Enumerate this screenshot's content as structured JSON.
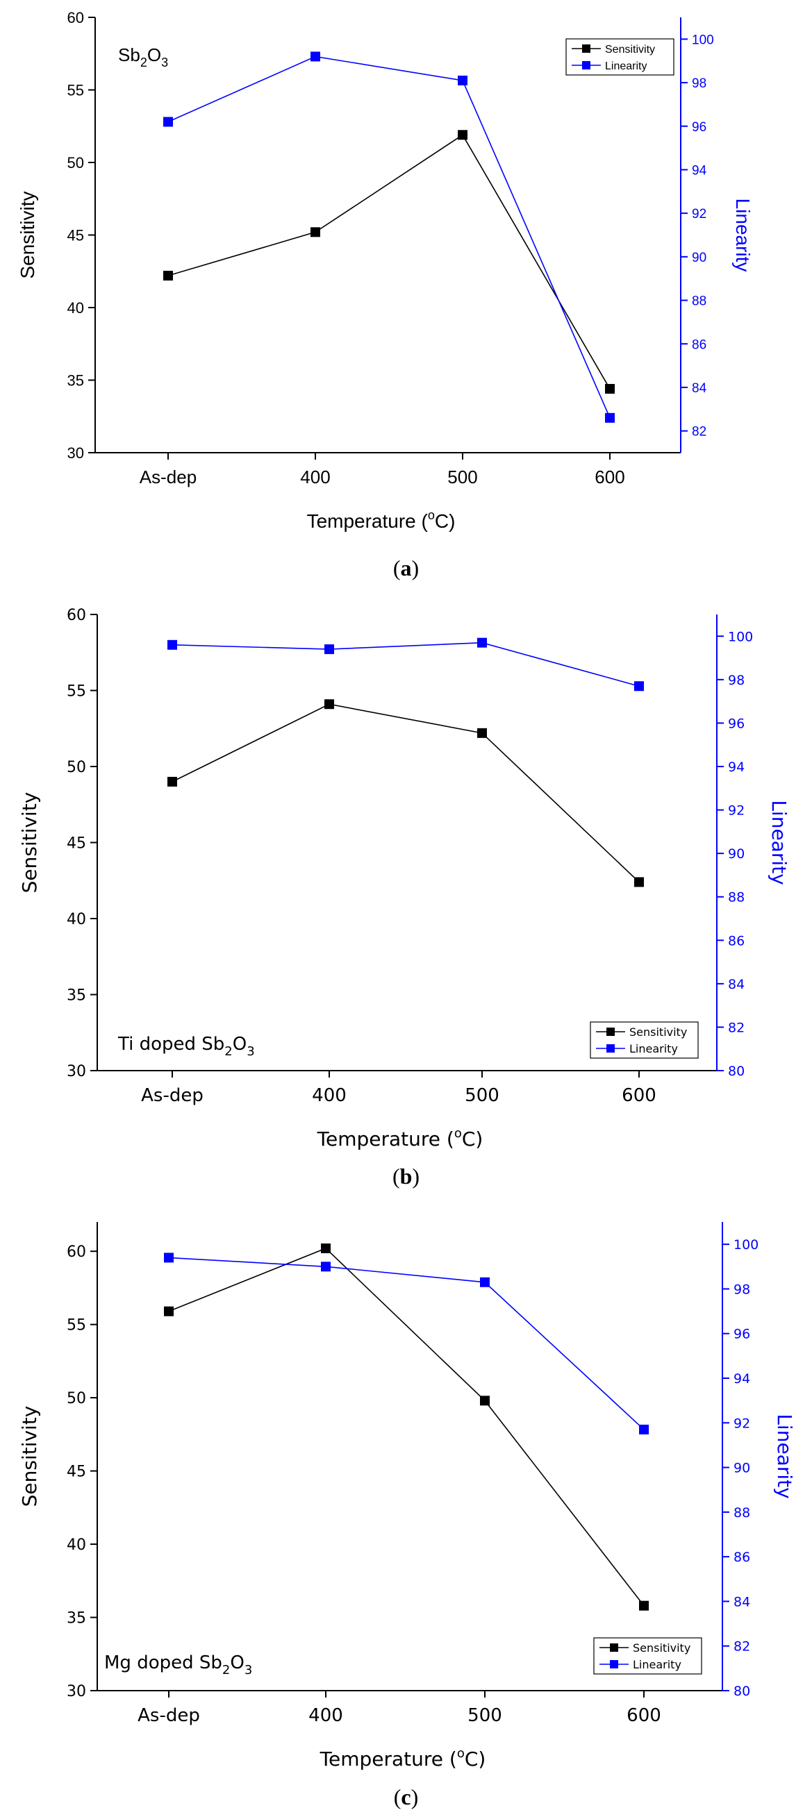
{
  "chart_data": [
    {
      "panel_letter": "a",
      "type": "line",
      "title": "",
      "annotation_base": "Sb",
      "annotation_sub1": "2",
      "annotation_mid": "O",
      "annotation_sub2": "3",
      "annotation_suffix": "",
      "categories": [
        "As-dep",
        "400",
        "500",
        "600"
      ],
      "xlabel_prefix": "Temperature (",
      "xlabel_degree": "o",
      "xlabel_suffix": "C)",
      "ylabel_left": "Sensitivity",
      "ylabel_right": "Linearity",
      "ylim_left": [
        30,
        60
      ],
      "yticks_left": [
        "30",
        "35",
        "40",
        "45",
        "50",
        "55",
        "60"
      ],
      "ylim_right": [
        81,
        101
      ],
      "yticks_right": [
        "82",
        "84",
        "86",
        "88",
        "90",
        "92",
        "94",
        "96",
        "98",
        "100"
      ],
      "legend_position": "top-right",
      "series": [
        {
          "name": "Sensitivity",
          "axis": "left",
          "color": "#000000",
          "values": [
            42.2,
            45.2,
            51.9,
            34.4
          ]
        },
        {
          "name": "Linearity",
          "axis": "right",
          "color": "#0000ff",
          "values": [
            96.2,
            99.2,
            98.1,
            82.6
          ]
        }
      ]
    },
    {
      "panel_letter": "b",
      "type": "line",
      "title": "",
      "annotation_base": "Ti doped Sb",
      "annotation_sub1": "2",
      "annotation_mid": "O",
      "annotation_sub2": "3",
      "annotation_suffix": "",
      "categories": [
        "As-dep",
        "400",
        "500",
        "600"
      ],
      "xlabel_prefix": "Temperature (",
      "xlabel_degree": "o",
      "xlabel_suffix": "C)",
      "ylabel_left": "Sensitivity",
      "ylabel_right": "Linearity",
      "ylim_left": [
        30,
        60
      ],
      "yticks_left": [
        "30",
        "35",
        "40",
        "45",
        "50",
        "55",
        "60"
      ],
      "ylim_right": [
        80,
        101
      ],
      "yticks_right": [
        "80",
        "82",
        "84",
        "86",
        "88",
        "90",
        "92",
        "94",
        "96",
        "98",
        "100"
      ],
      "legend_position": "bottom-right",
      "series": [
        {
          "name": "Sensitivity",
          "axis": "left",
          "color": "#000000",
          "values": [
            49.0,
            54.1,
            52.2,
            42.4
          ]
        },
        {
          "name": "Linearity",
          "axis": "right",
          "color": "#0000ff",
          "values": [
            99.6,
            99.4,
            99.7,
            97.7
          ]
        }
      ]
    },
    {
      "panel_letter": "c",
      "type": "line",
      "title": "",
      "annotation_base": "Mg doped Sb",
      "annotation_sub1": "2",
      "annotation_mid": "O",
      "annotation_sub2": "3",
      "annotation_suffix": "",
      "categories": [
        "As-dep",
        "400",
        "500",
        "600"
      ],
      "xlabel_prefix": "Temperature (",
      "xlabel_degree": "o",
      "xlabel_suffix": "C)",
      "ylabel_left": "Sensitivity",
      "ylabel_right": "Linearity",
      "ylim_left": [
        30,
        62
      ],
      "yticks_left": [
        "30",
        "35",
        "40",
        "45",
        "50",
        "55",
        "60"
      ],
      "ylim_right": [
        80,
        101
      ],
      "yticks_right": [
        "80",
        "82",
        "84",
        "86",
        "88",
        "90",
        "92",
        "94",
        "96",
        "98",
        "100"
      ],
      "legend_position": "bottom-right",
      "series": [
        {
          "name": "Sensitivity",
          "axis": "left",
          "color": "#000000",
          "values": [
            55.9,
            60.2,
            49.8,
            35.8
          ]
        },
        {
          "name": "Linearity",
          "axis": "right",
          "color": "#0000ff",
          "values": [
            99.4,
            99.0,
            98.3,
            91.7
          ]
        }
      ]
    }
  ]
}
